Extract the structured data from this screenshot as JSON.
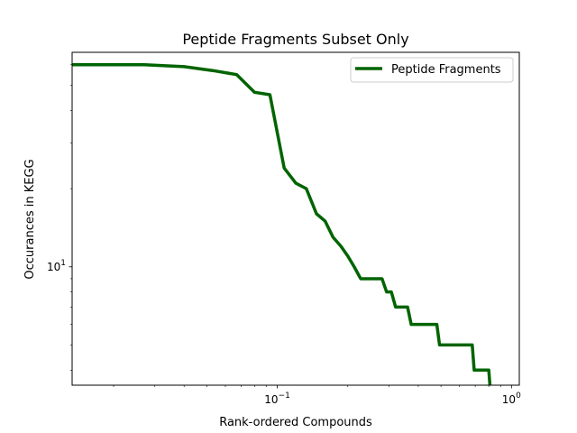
{
  "chart_data": {
    "type": "line",
    "title": "Peptide Fragments Subset Only",
    "xlabel": "Rank-ordered Compounds",
    "ylabel": "Occurances in KEGG",
    "xscale": "log",
    "yscale": "log",
    "xlim": [
      0.0133,
      1.08
    ],
    "ylim": [
      3.5,
      67
    ],
    "x_ticks": [
      {
        "value": 0.1,
        "base": "10",
        "exp": "−1"
      },
      {
        "value": 1,
        "base": "10",
        "exp": "0"
      }
    ],
    "y_ticks": [
      {
        "value": 10,
        "base": "10",
        "exp": "1"
      }
    ],
    "legend_position": "top-right",
    "series": [
      {
        "name": "Peptide Fragments",
        "color": "#006400",
        "x": [
          0.0133,
          0.027,
          0.04,
          0.053,
          0.067,
          0.08,
          0.093,
          0.107,
          0.12,
          0.133,
          0.147,
          0.16,
          0.173,
          0.187,
          0.2,
          0.213,
          0.227,
          0.28,
          0.293,
          0.307,
          0.32,
          0.36,
          0.373,
          0.48,
          0.493,
          0.68,
          0.693,
          0.8,
          0.813,
          1.0
        ],
        "values": [
          60,
          60,
          59,
          57,
          55,
          47,
          46,
          24,
          21,
          20,
          16,
          15,
          13,
          12,
          11,
          10,
          9,
          9,
          8,
          8,
          7,
          7,
          6,
          6,
          5,
          5,
          4,
          4,
          3.3,
          3.3
        ]
      }
    ]
  }
}
